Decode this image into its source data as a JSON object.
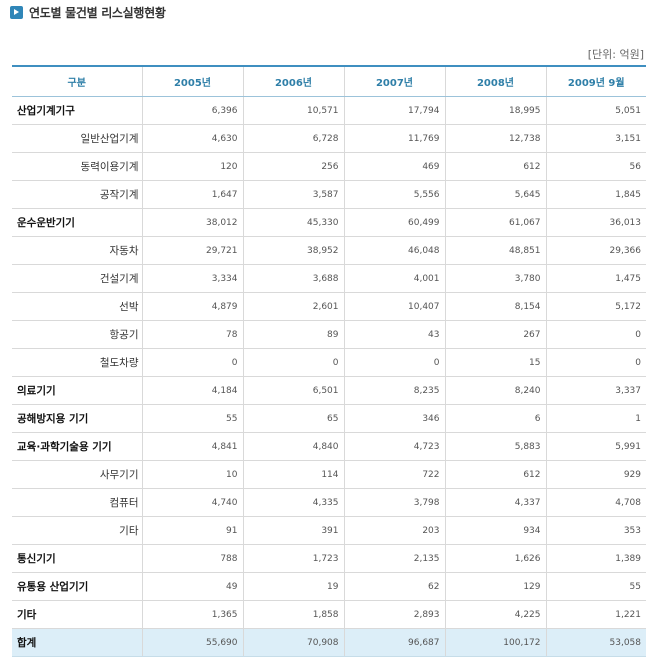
{
  "title": "연도별 물건별 리스실행현황",
  "unit": "[단위: 억원]",
  "headers": [
    "구분",
    "2005년",
    "2006년",
    "2007년",
    "2008년",
    "2009년 9월"
  ],
  "rows": [
    {
      "label": "산업기계기구",
      "level": "cat",
      "values": [
        "6,396",
        "10,571",
        "17,794",
        "18,995",
        "5,051"
      ]
    },
    {
      "label": "일반산업기계",
      "level": "sub",
      "values": [
        "4,630",
        "6,728",
        "11,769",
        "12,738",
        "3,151"
      ]
    },
    {
      "label": "동력이용기계",
      "level": "sub",
      "values": [
        "120",
        "256",
        "469",
        "612",
        "56"
      ]
    },
    {
      "label": "공작기계",
      "level": "sub",
      "values": [
        "1,647",
        "3,587",
        "5,556",
        "5,645",
        "1,845"
      ]
    },
    {
      "label": "운수운반기기",
      "level": "cat",
      "values": [
        "38,012",
        "45,330",
        "60,499",
        "61,067",
        "36,013"
      ]
    },
    {
      "label": "자동차",
      "level": "sub",
      "values": [
        "29,721",
        "38,952",
        "46,048",
        "48,851",
        "29,366"
      ]
    },
    {
      "label": "건설기계",
      "level": "sub",
      "values": [
        "3,334",
        "3,688",
        "4,001",
        "3,780",
        "1,475"
      ]
    },
    {
      "label": "선박",
      "level": "sub",
      "values": [
        "4,879",
        "2,601",
        "10,407",
        "8,154",
        "5,172"
      ]
    },
    {
      "label": "항공기",
      "level": "sub",
      "values": [
        "78",
        "89",
        "43",
        "267",
        "0"
      ]
    },
    {
      "label": "철도차량",
      "level": "sub",
      "values": [
        "0",
        "0",
        "0",
        "15",
        "0"
      ]
    },
    {
      "label": "의료기기",
      "level": "cat",
      "values": [
        "4,184",
        "6,501",
        "8,235",
        "8,240",
        "3,337"
      ]
    },
    {
      "label": "공해방지용 기기",
      "level": "cat",
      "values": [
        "55",
        "65",
        "346",
        "6",
        "1"
      ]
    },
    {
      "label": "교육·과학기술용 기기",
      "level": "cat",
      "values": [
        "4,841",
        "4,840",
        "4,723",
        "5,883",
        "5,991"
      ]
    },
    {
      "label": "사무기기",
      "level": "sub",
      "values": [
        "10",
        "114",
        "722",
        "612",
        "929"
      ]
    },
    {
      "label": "컴퓨터",
      "level": "sub",
      "values": [
        "4,740",
        "4,335",
        "3,798",
        "4,337",
        "4,708"
      ]
    },
    {
      "label": "기타",
      "level": "sub",
      "values": [
        "91",
        "391",
        "203",
        "934",
        "353"
      ]
    },
    {
      "label": "통신기기",
      "level": "cat",
      "values": [
        "788",
        "1,723",
        "2,135",
        "1,626",
        "1,389"
      ]
    },
    {
      "label": "유통용 산업기기",
      "level": "cat",
      "values": [
        "49",
        "19",
        "62",
        "129",
        "55"
      ]
    },
    {
      "label": "기타",
      "level": "cat",
      "values": [
        "1,365",
        "1,858",
        "2,893",
        "4,225",
        "1,221"
      ]
    },
    {
      "label": "합계",
      "level": "total",
      "values": [
        "55,690",
        "70,908",
        "96,687",
        "100,172",
        "53,058"
      ]
    }
  ]
}
